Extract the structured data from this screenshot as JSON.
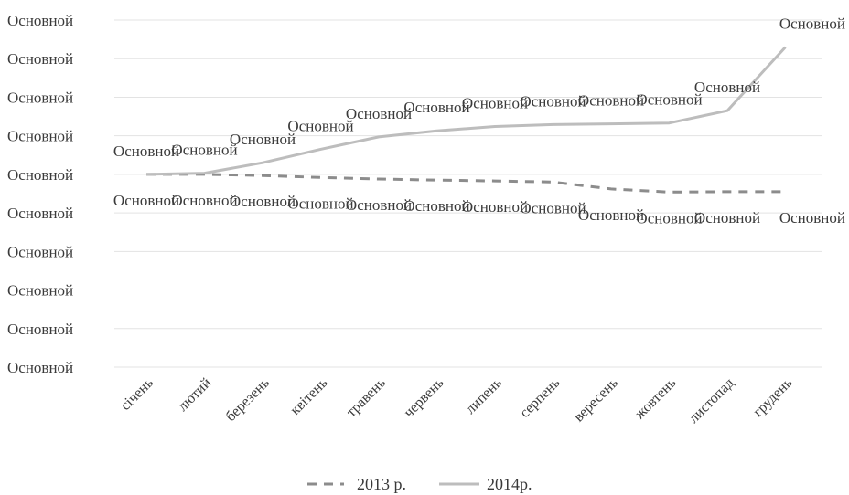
{
  "chart_data": {
    "type": "line",
    "categories": [
      "січень",
      "лютий",
      "березень",
      "квітень",
      "травень",
      "червень",
      "липень",
      "серпень",
      "вересень",
      "жовтень",
      "листопад",
      "грудень"
    ],
    "y_tick_labels": [
      "Основной",
      "Основной",
      "Основной",
      "Основной",
      "Основной",
      "Основной",
      "Основной",
      "Основной",
      "Основной",
      "Основной"
    ],
    "ylim": [
      0,
      9
    ],
    "grid": true,
    "legend_position": "bottom",
    "series": [
      {
        "name": "2013 р.",
        "style": "dashed",
        "color": "#8c8c8c",
        "values": [
          5.0,
          5.0,
          4.97,
          4.92,
          4.88,
          4.85,
          4.83,
          4.8,
          4.62,
          4.54,
          4.55,
          4.55
        ],
        "data_labels": [
          "Основной",
          "Основной",
          "Основной",
          "Основной",
          "Основной",
          "Основной",
          "Основной",
          "Основной",
          "Основной",
          "Основной",
          "Основной",
          "Основной"
        ]
      },
      {
        "name": "2014р.",
        "style": "solid",
        "color": "#bdbdbd",
        "values": [
          5.0,
          5.03,
          5.3,
          5.65,
          5.97,
          6.13,
          6.24,
          6.29,
          6.31,
          6.33,
          6.65,
          8.3
        ],
        "data_labels": [
          "Основной",
          "Основной",
          "Основной",
          "Основной",
          "Основной",
          "Основной",
          "Основной",
          "Основной",
          "Основной",
          "Основной",
          "Основной",
          "Основной"
        ]
      }
    ]
  }
}
